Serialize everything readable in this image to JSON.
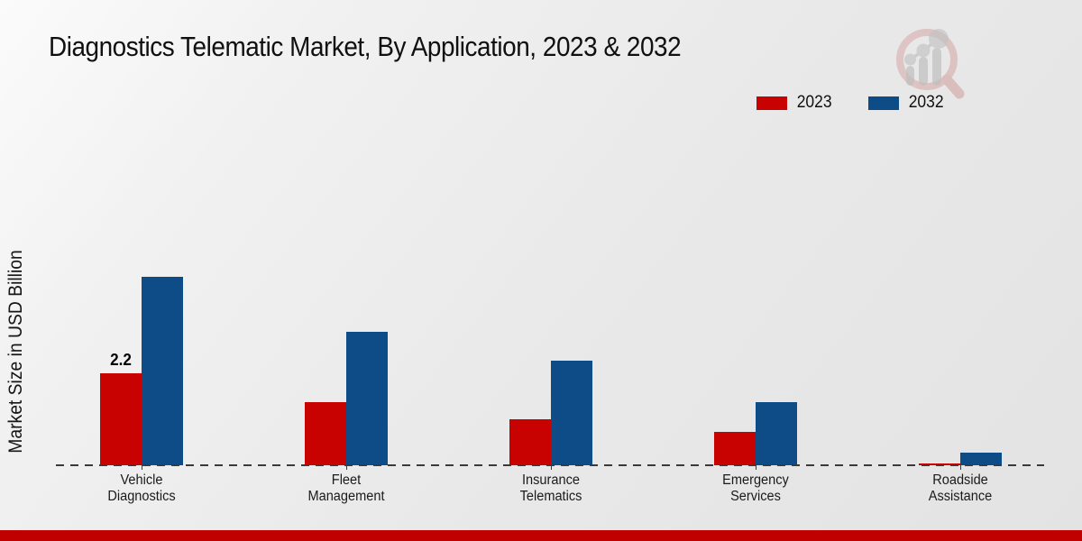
{
  "title": "Diagnostics Telematic Market, By Application, 2023 & 2032",
  "watermark_icon": "magnifier-bar-chart-logo",
  "footer": {
    "bar_color": "#c00000"
  },
  "colors": {
    "series_2023": "#c80101",
    "series_2032": "#0d4c87",
    "baseline": "#3a3a3a",
    "text": "#101010"
  },
  "chart_data": {
    "type": "bar",
    "title": "Diagnostics Telematic Market, By Application, 2023 & 2032",
    "xlabel": "",
    "ylabel": "Market Size in USD Billion",
    "ylim": [
      0,
      5
    ],
    "grid": false,
    "legend_position": "top-right",
    "baseline_style": "dashed",
    "categories": [
      "Vehicle Diagnostics",
      "Fleet Management",
      "Insurance Telematics",
      "Emergency Services",
      "Roadside Assistance"
    ],
    "category_label_lines": [
      [
        "Vehicle",
        "Diagnostics"
      ],
      [
        "Fleet",
        "Management"
      ],
      [
        "Insurance",
        "Telematics"
      ],
      [
        "Emergency",
        "Services"
      ],
      [
        "Roadside",
        "Assistance"
      ]
    ],
    "series": [
      {
        "name": "2023",
        "color": "#c80101",
        "values": [
          2.2,
          1.5,
          1.1,
          0.8,
          0.05
        ]
      },
      {
        "name": "2032",
        "color": "#0d4c87",
        "values": [
          4.5,
          3.2,
          2.5,
          1.5,
          0.3
        ]
      }
    ],
    "data_labels": [
      {
        "series_index": 0,
        "category_index": 0,
        "text": "2.2"
      }
    ]
  }
}
